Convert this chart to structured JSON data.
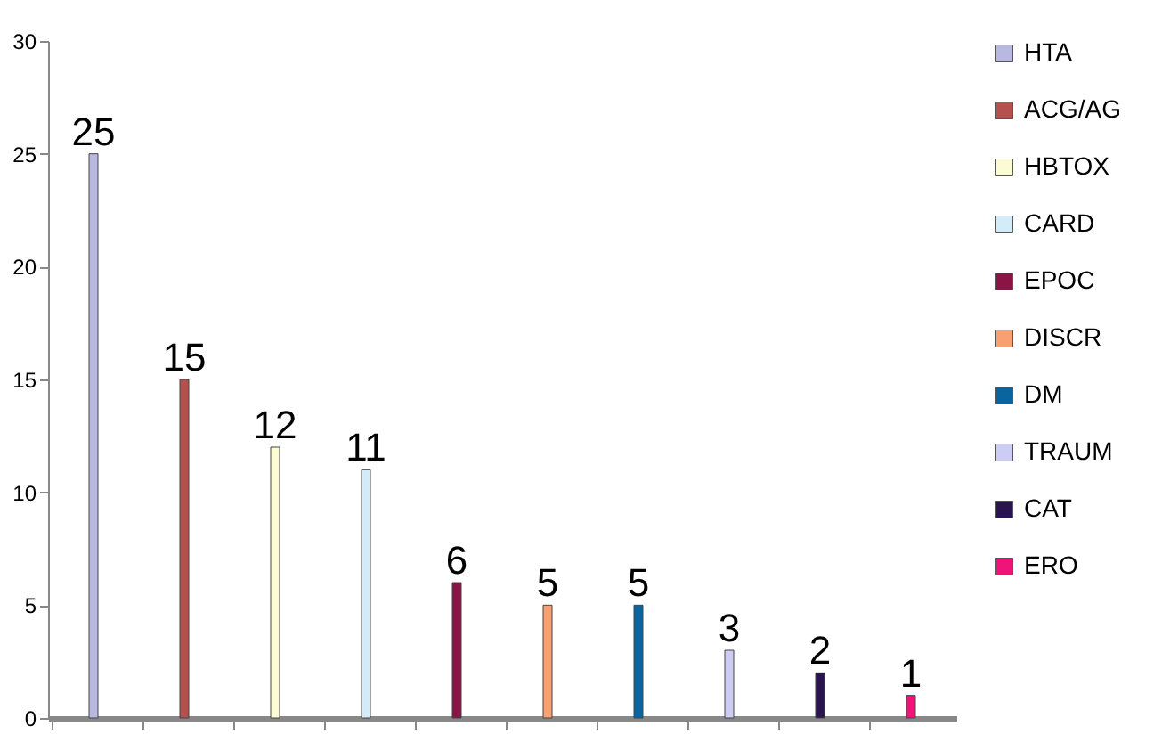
{
  "chart_data": {
    "type": "bar",
    "categories": [
      null,
      null,
      null,
      null,
      null,
      null,
      null,
      null,
      null,
      null
    ],
    "ylim": [
      0,
      30
    ],
    "yticks": [
      0,
      5,
      10,
      15,
      20,
      25,
      30
    ],
    "grid": false,
    "legend": "right",
    "data_labels": true,
    "series": [
      {
        "name": "HTA",
        "color": "#b8b8e0",
        "values": [
          25,
          null,
          null,
          null,
          null,
          null,
          null,
          null,
          null,
          null
        ]
      },
      {
        "name": "ACG/AG",
        "color": "#b4504e",
        "values": [
          null,
          15,
          null,
          null,
          null,
          null,
          null,
          null,
          null,
          null
        ]
      },
      {
        "name": "HBTOX",
        "color": "#fcfcd4",
        "values": [
          null,
          null,
          12,
          null,
          null,
          null,
          null,
          null,
          null,
          null
        ]
      },
      {
        "name": "CARD",
        "color": "#d4ecf8",
        "values": [
          null,
          null,
          null,
          11,
          null,
          null,
          null,
          null,
          null,
          null
        ]
      },
      {
        "name": "EPOC",
        "color": "#8a1446",
        "values": [
          null,
          null,
          null,
          null,
          6,
          null,
          null,
          null,
          null,
          null
        ]
      },
      {
        "name": "DISCR",
        "color": "#f8a070",
        "values": [
          null,
          null,
          null,
          null,
          null,
          5,
          null,
          null,
          null,
          null
        ]
      },
      {
        "name": "DM",
        "color": "#0a64a0",
        "values": [
          null,
          null,
          null,
          null,
          null,
          null,
          5,
          null,
          null,
          null
        ]
      },
      {
        "name": "TRAUM",
        "color": "#ccccf4",
        "values": [
          null,
          null,
          null,
          null,
          null,
          null,
          null,
          3,
          null,
          null
        ]
      },
      {
        "name": "CAT",
        "color": "#2a1450",
        "values": [
          null,
          null,
          null,
          null,
          null,
          null,
          null,
          null,
          2,
          null
        ]
      },
      {
        "name": "ERO",
        "color": "#f01478",
        "values": [
          null,
          null,
          null,
          null,
          null,
          null,
          null,
          null,
          null,
          1
        ]
      }
    ]
  }
}
